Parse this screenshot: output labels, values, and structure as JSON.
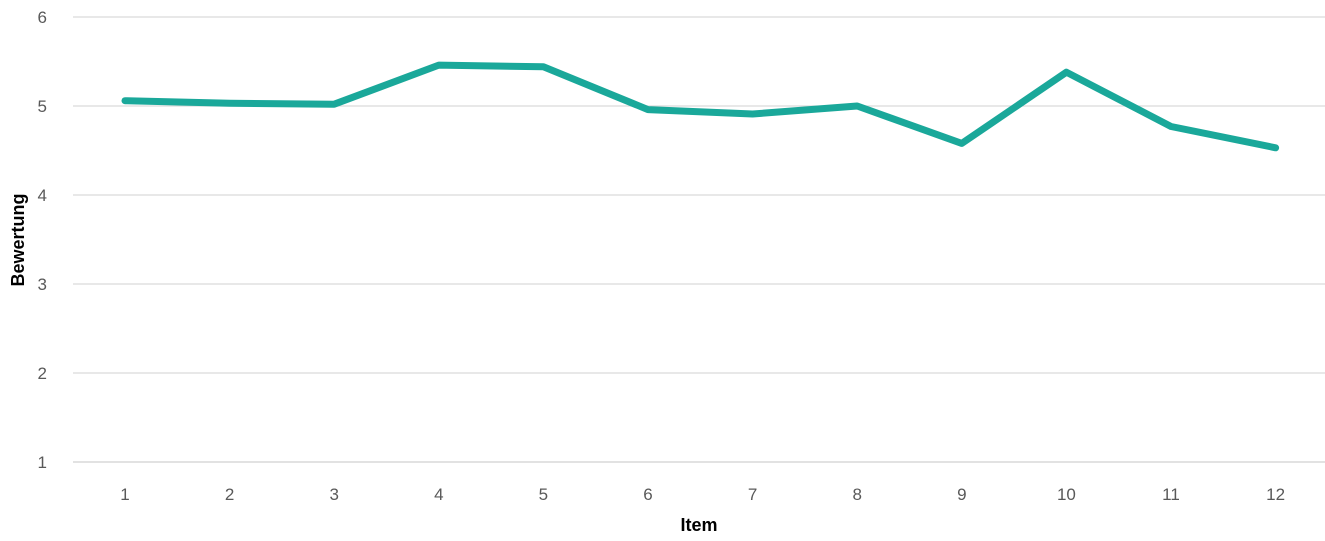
{
  "chart_data": {
    "type": "line",
    "title": "",
    "xlabel": "Item",
    "ylabel": "Bewertung",
    "categories": [
      "1",
      "2",
      "3",
      "4",
      "5",
      "6",
      "7",
      "8",
      "9",
      "10",
      "11",
      "12"
    ],
    "series": [
      {
        "values": [
          5.06,
          5.03,
          5.02,
          5.46,
          5.44,
          4.96,
          4.91,
          5.0,
          4.58,
          5.38,
          4.77,
          4.53
        ],
        "color": "#1aa89a"
      }
    ],
    "ylim": [
      1,
      6
    ],
    "yticks": [
      1,
      2,
      3,
      4,
      5,
      6
    ],
    "grid": true,
    "legend": "none"
  }
}
